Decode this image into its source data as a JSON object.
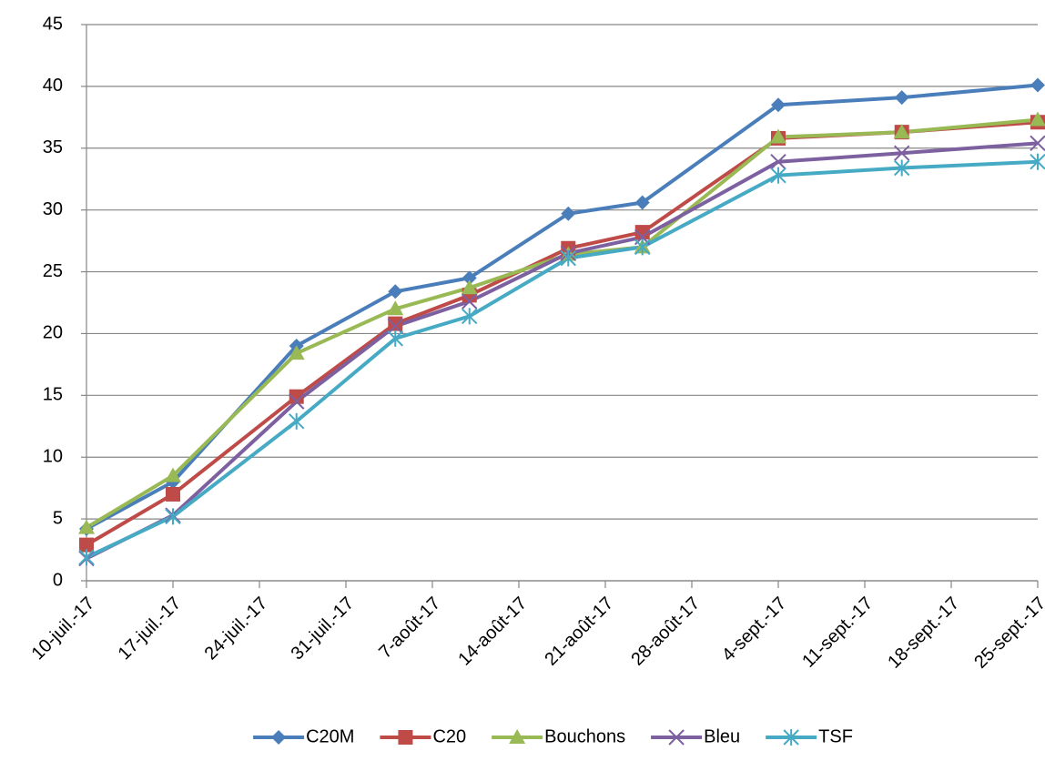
{
  "chart_data": {
    "type": "line",
    "x": [
      "2017-07-10",
      "2017-07-17",
      "2017-07-27",
      "2017-08-04",
      "2017-08-10",
      "2017-08-18",
      "2017-08-24",
      "2017-09-04",
      "2017-09-14",
      "2017-09-25"
    ],
    "series": [
      {
        "name": "C20M",
        "color": "#4a7ebb",
        "marker": "diamond",
        "values": [
          4.2,
          8,
          19,
          23.4,
          24.5,
          29.7,
          30.6,
          38.5,
          39.1,
          40.1
        ]
      },
      {
        "name": "C20",
        "color": "#be4b48",
        "marker": "square",
        "values": [
          2.9,
          7,
          14.9,
          20.8,
          23.1,
          26.9,
          28.2,
          35.8,
          36.3,
          37.1
        ]
      },
      {
        "name": "Bouchons",
        "color": "#98b954",
        "marker": "triangle",
        "values": [
          4.3,
          8.5,
          18.4,
          22,
          23.7,
          26.4,
          27,
          35.9,
          36.3,
          37.3
        ]
      },
      {
        "name": "Bleu",
        "color": "#7d60a0",
        "marker": "x",
        "values": [
          1.8,
          5.3,
          14.5,
          20.6,
          22.6,
          26.5,
          27.8,
          33.9,
          34.6,
          35.4
        ]
      },
      {
        "name": "TSF",
        "color": "#46aac5",
        "marker": "star",
        "values": [
          1.9,
          5.2,
          12.9,
          19.6,
          21.4,
          26.1,
          27,
          32.8,
          33.4,
          33.9
        ]
      }
    ],
    "xlim": [
      "2017-07-10",
      "2017-09-25"
    ],
    "xticks": [
      {
        "value": "2017-07-10",
        "label": "10-juil.-17"
      },
      {
        "value": "2017-07-17",
        "label": "17-juil.-17"
      },
      {
        "value": "2017-07-24",
        "label": "24-juil.-17"
      },
      {
        "value": "2017-07-31",
        "label": "31-juil.-17"
      },
      {
        "value": "2017-08-07",
        "label": "7-août-17"
      },
      {
        "value": "2017-08-14",
        "label": "14-août-17"
      },
      {
        "value": "2017-08-21",
        "label": "21-août-17"
      },
      {
        "value": "2017-08-28",
        "label": "28-août-17"
      },
      {
        "value": "2017-09-04",
        "label": "4-sept.-17"
      },
      {
        "value": "2017-09-11",
        "label": "11-sept.-17"
      },
      {
        "value": "2017-09-18",
        "label": "18-sept.-17"
      },
      {
        "value": "2017-09-25",
        "label": "25-sept.-17"
      }
    ],
    "ylim": [
      0,
      45
    ],
    "yticks": [
      0,
      5,
      10,
      15,
      20,
      25,
      30,
      35,
      40,
      45
    ],
    "grid": true,
    "legend": "bottom"
  }
}
